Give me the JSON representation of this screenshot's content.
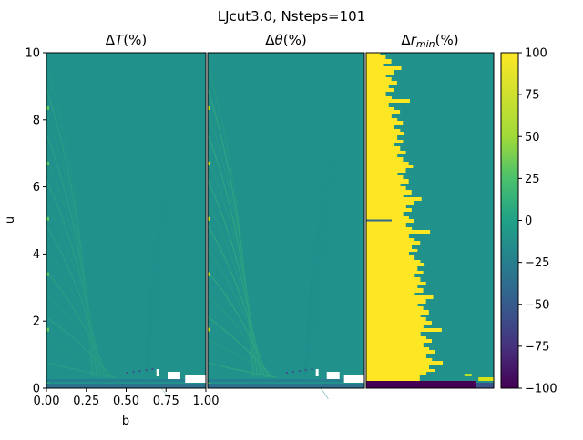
{
  "chart_data": {
    "type": "heatmap",
    "title": "LJcut3.0, Nsteps=101",
    "panels": [
      {
        "title_main": "ΔT",
        "title_sub": "",
        "title_suffix": "(%)"
      },
      {
        "title_main": "Δθ",
        "title_sub": "",
        "title_suffix": "(%)"
      },
      {
        "title_main": "Δr",
        "title_sub": "min",
        "title_suffix": "(%)"
      }
    ],
    "xlabel": "b",
    "ylabel": "u",
    "xlim": [
      0,
      1
    ],
    "ylim": [
      0,
      10
    ],
    "x_ticks": [
      "0.00",
      "0.25",
      "0.50",
      "0.75",
      "1.00"
    ],
    "y_ticks": [
      "0",
      "2",
      "4",
      "6",
      "8",
      "10"
    ],
    "colorbar": {
      "range": [
        -100,
        100
      ],
      "ticks": [
        "100",
        "75",
        "50",
        "25",
        "0",
        "−25",
        "−50",
        "−75",
        "−100"
      ],
      "colormap": "viridis",
      "background_value": 0
    },
    "colors": {
      "viridis_low": "#440154",
      "viridis_mid": "#21918c",
      "viridis_high": "#fde725",
      "missing": "#ffffff"
    }
  }
}
